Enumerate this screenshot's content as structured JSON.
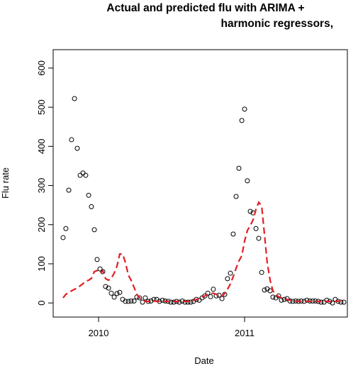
{
  "chart_data": {
    "type": "scatter",
    "title_lines": [
      "Actual and predicted flu with ARIMA +",
      "harmonic regressors,"
    ],
    "x_label": "Date",
    "y_label": "Flu rate",
    "xlim": [
      2009.689,
      2011.704
    ],
    "xticks": [
      2010,
      2011
    ],
    "ylim": [
      -36,
      647
    ],
    "yticks": [
      0,
      100,
      200,
      300,
      400,
      500,
      600
    ],
    "x": [
      2009.757,
      2009.776,
      2009.796,
      2009.815,
      2009.835,
      2009.854,
      2009.874,
      2009.893,
      2009.912,
      2009.932,
      2009.951,
      2009.971,
      2009.99,
      2010.01,
      2010.029,
      2010.048,
      2010.068,
      2010.087,
      2010.107,
      2010.126,
      2010.145,
      2010.165,
      2010.184,
      2010.204,
      2010.223,
      2010.243,
      2010.262,
      2010.281,
      2010.301,
      2010.32,
      2010.34,
      2010.359,
      2010.379,
      2010.398,
      2010.417,
      2010.437,
      2010.456,
      2010.476,
      2010.495,
      2010.515,
      2010.534,
      2010.553,
      2010.573,
      2010.592,
      2010.612,
      2010.631,
      2010.65,
      2010.67,
      2010.689,
      2010.709,
      2010.728,
      2010.748,
      2010.767,
      2010.786,
      2010.806,
      2010.825,
      2010.845,
      2010.864,
      2010.883,
      2010.903,
      2010.922,
      2010.942,
      2010.961,
      2010.981,
      2011.0,
      2011.019,
      2011.039,
      2011.058,
      2011.078,
      2011.097,
      2011.117,
      2011.136,
      2011.155,
      2011.175,
      2011.194,
      2011.214,
      2011.233,
      2011.252,
      2011.272,
      2011.291,
      2011.311,
      2011.33,
      2011.35,
      2011.369,
      2011.388,
      2011.408,
      2011.427,
      2011.447,
      2011.466,
      2011.485,
      2011.505,
      2011.524,
      2011.544,
      2011.563,
      2011.583,
      2011.602,
      2011.621,
      2011.641,
      2011.66,
      2011.68
    ],
    "series": [
      {
        "style": "points",
        "color": "#000000",
        "values": [
          167,
          190,
          288,
          417,
          522,
          395,
          326,
          332,
          326,
          275,
          246,
          187,
          111,
          87,
          80,
          42,
          38,
          25,
          15,
          24,
          27,
          9,
          4,
          4,
          5,
          5,
          15,
          13,
          2,
          13,
          4,
          5,
          9,
          9,
          4,
          7,
          5,
          4,
          2,
          2,
          4,
          2,
          5,
          2,
          2,
          2,
          4,
          9,
          7,
          13,
          18,
          25,
          16,
          35,
          18,
          20,
          11,
          22,
          62,
          76,
          176,
          272,
          344,
          466,
          495,
          312,
          234,
          230,
          190,
          165,
          78,
          33,
          36,
          31,
          15,
          13,
          18,
          7,
          9,
          11,
          5,
          4,
          5,
          4,
          5,
          4,
          7,
          5,
          5,
          5,
          4,
          2,
          2,
          7,
          4,
          0,
          9,
          4,
          2,
          2
        ]
      },
      {
        "style": "dashed-line",
        "color": "#e31e24",
        "values": [
          13,
          22,
          27,
          31,
          35,
          38,
          44,
          49,
          56,
          58,
          63,
          80,
          83,
          76,
          82,
          62,
          58,
          63,
          76,
          94,
          125,
          125,
          103,
          71,
          58,
          40,
          22,
          13,
          9,
          4,
          4,
          5,
          5,
          4,
          4,
          5,
          4,
          4,
          4,
          4,
          4,
          4,
          4,
          4,
          4,
          5,
          7,
          9,
          11,
          15,
          18,
          22,
          24,
          25,
          22,
          20,
          18,
          24,
          35,
          49,
          67,
          89,
          107,
          121,
          158,
          185,
          198,
          212,
          239,
          257,
          248,
          176,
          103,
          58,
          31,
          22,
          16,
          13,
          11,
          9,
          7,
          5,
          5,
          4,
          4,
          4,
          4,
          4,
          4,
          4,
          4,
          4,
          4,
          4,
          4,
          4,
          4,
          4,
          7,
          4
        ]
      }
    ]
  }
}
